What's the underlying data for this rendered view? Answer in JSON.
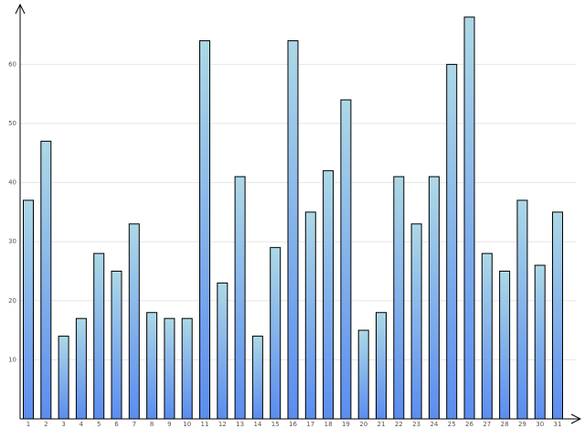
{
  "chart_data": {
    "type": "bar",
    "categories": [
      "1",
      "2",
      "3",
      "4",
      "5",
      "6",
      "7",
      "8",
      "9",
      "10",
      "11",
      "12",
      "13",
      "14",
      "15",
      "16",
      "17",
      "18",
      "19",
      "20",
      "21",
      "22",
      "23",
      "24",
      "25",
      "26",
      "27",
      "28",
      "29",
      "30",
      "31"
    ],
    "values": [
      37,
      47,
      14,
      17,
      28,
      25,
      33,
      18,
      17,
      17,
      64,
      23,
      41,
      14,
      29,
      64,
      35,
      42,
      54,
      15,
      18,
      41,
      33,
      41,
      60,
      68,
      28,
      25,
      37,
      26,
      35
    ],
    "gradient": [
      "#add8e6",
      "#5b8def"
    ],
    "ylim": [
      0,
      70
    ],
    "yticks": [
      10,
      20,
      30,
      40,
      50,
      60
    ],
    "grid": true
  }
}
